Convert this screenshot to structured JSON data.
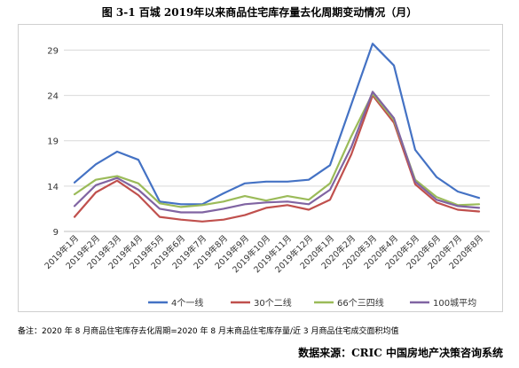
{
  "title": "图 3-1  百城 2019年以来商品住宅库存量去化周期变动情况（月）",
  "note": "备注：2020 年 8 月商品住宅库存去化周期=2020 年 8 月末商品住宅库存量/近 3 月商品住宅成交面积均值",
  "source": "数据来源：CRIC 中国房地产决策咨询系统",
  "chart_data": {
    "type": "line",
    "categories": [
      "2019年1月",
      "2019年2月",
      "2019年3月",
      "2019年4月",
      "2019年5月",
      "2019年6月",
      "2019年7月",
      "2019年8月",
      "2019年9月",
      "2019年10月",
      "2019年11月",
      "2019年12月",
      "2020年1月",
      "2020年2月",
      "2020年3月",
      "2020年4月",
      "2020年5月",
      "2020年6月",
      "2020年7月",
      "2020年8月"
    ],
    "ylim": [
      9,
      31
    ],
    "yticks": [
      9,
      14,
      19,
      24,
      29
    ],
    "grid": true,
    "legend": "bottom",
    "series": [
      {
        "name": "4个一线",
        "color": "#4472C4",
        "values": [
          14.4,
          16.4,
          17.8,
          16.9,
          12.3,
          12.0,
          12.0,
          13.2,
          14.3,
          14.5,
          14.5,
          14.7,
          16.3,
          23.0,
          29.7,
          27.3,
          18.0,
          15.0,
          13.4,
          12.7
        ]
      },
      {
        "name": "30个二线",
        "color": "#C0504D",
        "values": [
          10.6,
          13.3,
          14.6,
          13.0,
          10.6,
          10.3,
          10.1,
          10.3,
          10.8,
          11.6,
          11.9,
          11.4,
          12.5,
          17.5,
          24.0,
          21.0,
          14.2,
          12.2,
          11.4,
          11.2
        ]
      },
      {
        "name": "66个三四线",
        "color": "#9BBB59",
        "values": [
          13.1,
          14.7,
          15.1,
          14.3,
          12.1,
          11.7,
          11.9,
          12.3,
          12.9,
          12.4,
          12.9,
          12.5,
          14.3,
          19.5,
          24.2,
          21.3,
          14.7,
          12.8,
          11.9,
          12.0
        ]
      },
      {
        "name": "100城平均",
        "color": "#8064A2",
        "values": [
          11.8,
          14.1,
          14.9,
          13.6,
          11.5,
          11.1,
          11.1,
          11.5,
          12.0,
          12.2,
          12.3,
          12.0,
          13.6,
          18.3,
          24.4,
          21.5,
          14.5,
          12.5,
          11.8,
          11.6
        ]
      }
    ]
  }
}
